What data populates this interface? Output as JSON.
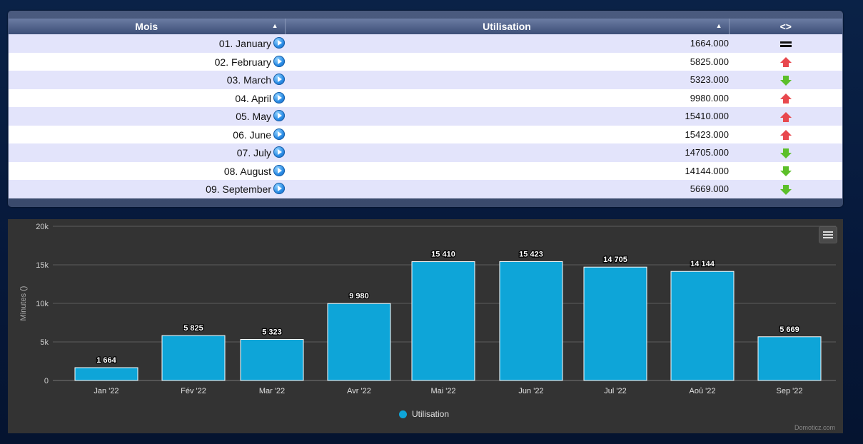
{
  "table": {
    "headers": {
      "month": "Mois",
      "usage": "Utilisation",
      "trend": "<>"
    },
    "sort_indicator": "▲",
    "rows": [
      {
        "month": "01. January",
        "usage": "1664.000",
        "trend": "equal"
      },
      {
        "month": "02. February",
        "usage": "5825.000",
        "trend": "up"
      },
      {
        "month": "03. March",
        "usage": "5323.000",
        "trend": "down"
      },
      {
        "month": "04. April",
        "usage": "9980.000",
        "trend": "up"
      },
      {
        "month": "05. May",
        "usage": "15410.000",
        "trend": "up"
      },
      {
        "month": "06. June",
        "usage": "15423.000",
        "trend": "up"
      },
      {
        "month": "07. July",
        "usage": "14705.000",
        "trend": "down"
      },
      {
        "month": "08. August",
        "usage": "14144.000",
        "trend": "down"
      },
      {
        "month": "09. September",
        "usage": "5669.000",
        "trend": "down"
      }
    ]
  },
  "chart_data": {
    "type": "bar",
    "categories": [
      "Jan '22",
      "Fév '22",
      "Mar '22",
      "Avr '22",
      "Mai '22",
      "Jun '22",
      "Jul '22",
      "Aoû '22",
      "Sep '22"
    ],
    "series": [
      {
        "name": "Utilisation",
        "values": [
          1664,
          5825,
          5323,
          9980,
          15410,
          15423,
          14705,
          14144,
          5669
        ],
        "color": "#0ea5d8"
      }
    ],
    "data_labels": [
      "1 664",
      "5 825",
      "5 323",
      "9 980",
      "15 410",
      "15 423",
      "14 705",
      "14 144",
      "5 669"
    ],
    "ylabel": "Minutes ()",
    "ylim": [
      0,
      20000
    ],
    "yticks": [
      0,
      5000,
      10000,
      15000,
      20000
    ],
    "ytick_labels": [
      "0",
      "5k",
      "10k",
      "15k",
      "20k"
    ],
    "grid": true,
    "legend": "bottom-center"
  },
  "chart": {
    "legend_label": "Utilisation",
    "credits": "Domoticz.com"
  },
  "colors": {
    "bar": "#0ea5d8",
    "trend_up": "#e8484e",
    "trend_down": "#5cbf2a"
  }
}
